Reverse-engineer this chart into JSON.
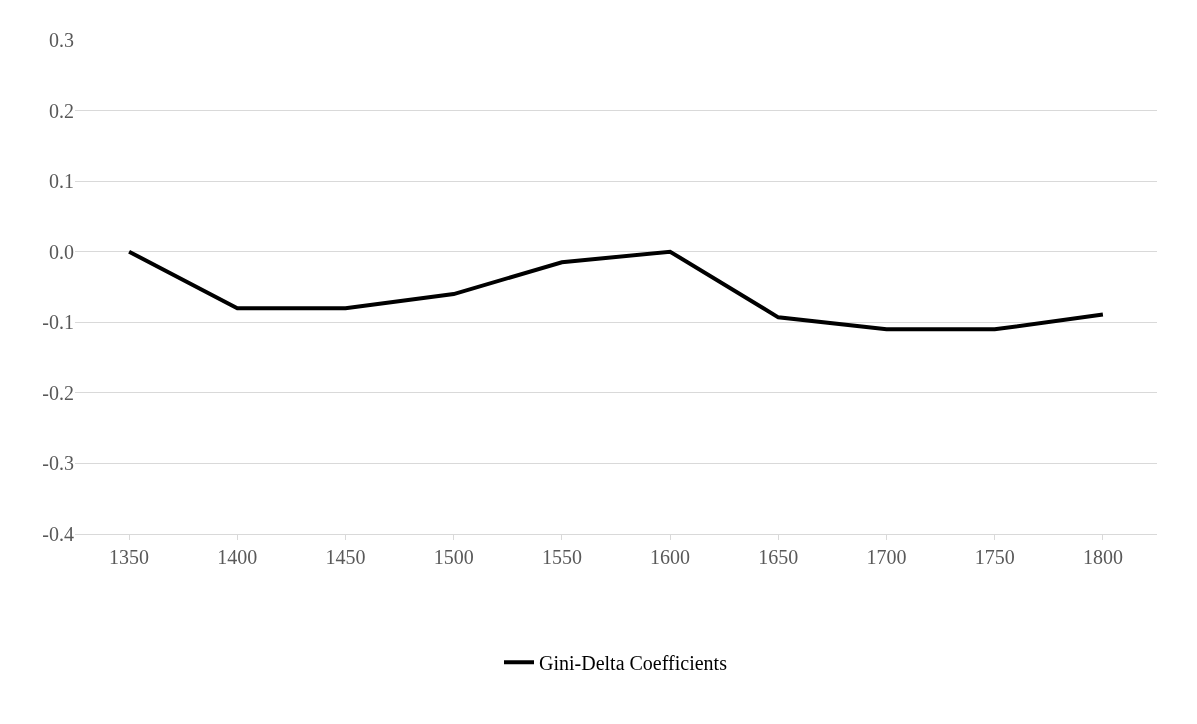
{
  "chart_data": {
    "type": "line",
    "categories": [
      "1350",
      "1400",
      "1450",
      "1500",
      "1550",
      "1600",
      "1650",
      "1700",
      "1750",
      "1800"
    ],
    "series": [
      {
        "name": "Gini-Delta Coefficients",
        "color": "#000000",
        "values": [
          0.0,
          -0.08,
          -0.08,
          -0.06,
          -0.015,
          0.0,
          -0.093,
          -0.11,
          -0.11,
          -0.089
        ]
      }
    ],
    "ylim": [
      -0.4,
      0.3
    ],
    "yticks": [
      {
        "value": -0.4,
        "label": "-0.4"
      },
      {
        "value": -0.3,
        "label": "-0.3"
      },
      {
        "value": -0.2,
        "label": "-0.2"
      },
      {
        "value": -0.1,
        "label": "-0.1"
      },
      {
        "value": 0,
        "label": "0.0"
      },
      {
        "value": 0.1,
        "label": "0.1"
      },
      {
        "value": 0.2,
        "label": "0.2"
      },
      {
        "value": 0.3,
        "label": "0.3"
      }
    ],
    "grid": "y",
    "legend": "bottom",
    "marker": "none",
    "line_style": "solid"
  }
}
